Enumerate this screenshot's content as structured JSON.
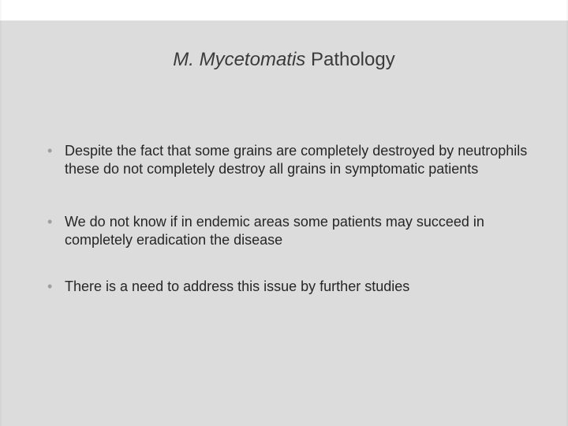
{
  "slide": {
    "background_color": "#dcdcdc",
    "top_band_color": "#ffffff",
    "title": {
      "italic_part": "M. Mycetomatis",
      "rest": "  Pathology",
      "fontsize": 24,
      "color": "#3a3a3a"
    },
    "bullets": {
      "dot_color": "#9e9e9e",
      "text_color": "#262626",
      "fontsize": 18,
      "items": [
        "Despite the fact that some grains are completely destroyed by neutrophils these do not completely destroy all grains in symptomatic patients",
        "We do not know if in endemic areas some patients may succeed in completely eradication the disease",
        "There is a need to address this issue by further studies"
      ]
    }
  }
}
